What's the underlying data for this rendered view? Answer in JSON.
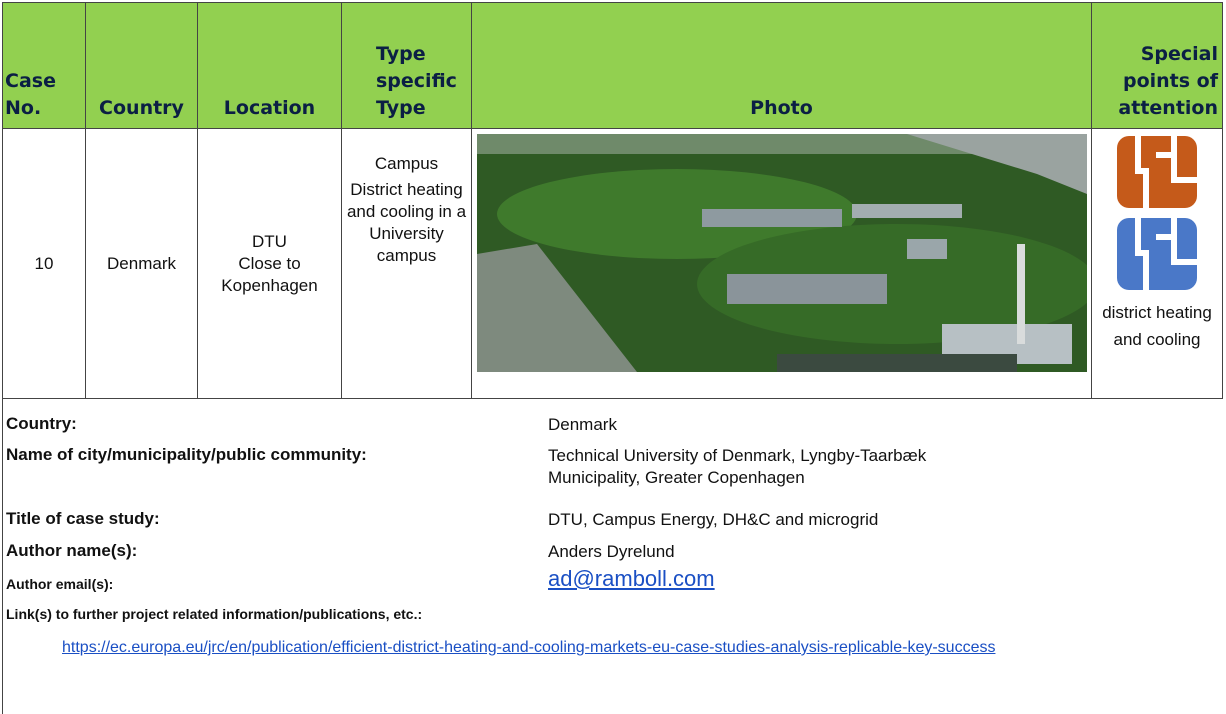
{
  "table": {
    "header": [
      "Case No.",
      "Country",
      "Location",
      "Type specific Type",
      "Photo",
      "Special points of attention"
    ],
    "row": {
      "case_no": "10",
      "country": "Denmark",
      "location": [
        "DTU",
        "Close to Kopenhagen"
      ],
      "type": [
        "Campus",
        "District heating and cooling in a University campus"
      ],
      "special": "district heating and cooling"
    }
  },
  "details": [
    {
      "label": "Country:",
      "value": "Denmark"
    },
    {
      "label": "Name of city/municipality/public community:",
      "value": "Technical University of Denmark, Lyngby-Taarbæk Municipality, Greater Copenhagen"
    },
    {
      "label": "Title of case study:",
      "value": "DTU, Campus Energy, DH&C and microgrid"
    },
    {
      "label": "Author name(s):",
      "value": "Anders Dyrelund"
    },
    {
      "label": "Author email(s):",
      "value": "ad@ramboll.com"
    }
  ],
  "link": {
    "label": "Link(s) to further project related information/publications, etc.:",
    "url": "https://ec.europa.eu/jrc/en/publication/efficient-district-heating-and-cooling-markets-eu-case-studies-analysis-replicable-key-success"
  }
}
